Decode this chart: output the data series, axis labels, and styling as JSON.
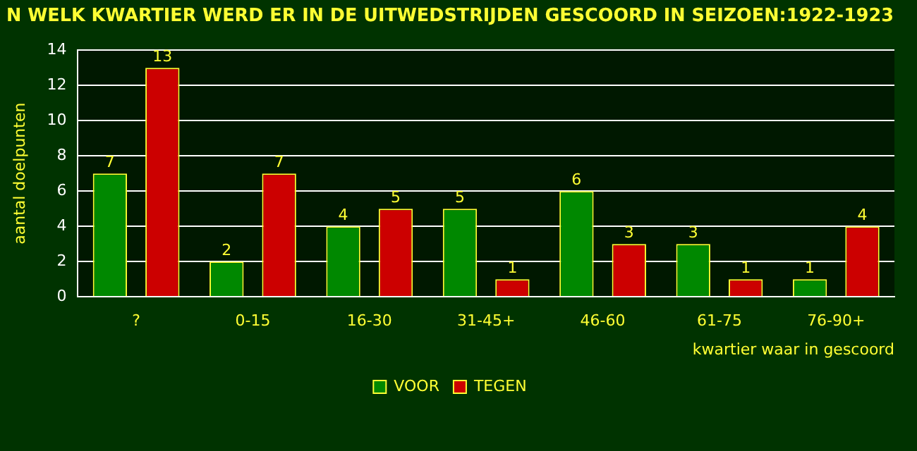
{
  "chart_data": {
    "type": "bar",
    "title": "N WELK KWARTIER WERD ER IN DE UITWEDSTRIJDEN GESCOORD IN SEIZOEN:1922-1923",
    "xlabel": "kwartier waar in gescoord",
    "ylabel": "aantal doelpunten",
    "categories": [
      "?",
      "0-15",
      "16-30",
      "31-45+",
      "46-60",
      "61-75",
      "76-90+"
    ],
    "series": [
      {
        "name": "VOOR",
        "color": "#008800",
        "values": [
          7,
          2,
          4,
          5,
          6,
          3,
          1
        ]
      },
      {
        "name": "TEGEN",
        "color": "#cc0000",
        "values": [
          13,
          7,
          5,
          1,
          3,
          1,
          4
        ]
      }
    ],
    "ylim": [
      0,
      14
    ],
    "yticks": [
      0,
      2,
      4,
      6,
      8,
      10,
      12,
      14
    ],
    "grid": "y",
    "legend": "bottom",
    "data_labels": true
  }
}
